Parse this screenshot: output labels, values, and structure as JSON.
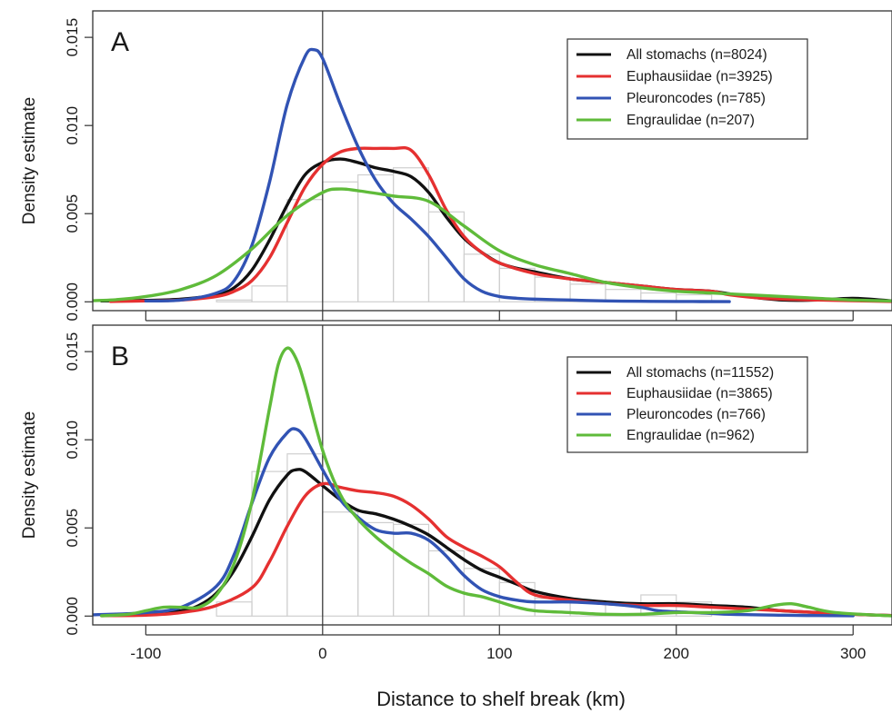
{
  "chart_data": [
    {
      "type": "line",
      "panel_label": "A",
      "ylabel": "Density estimate",
      "xlim": [
        -130,
        322
      ],
      "ylim": [
        -0.0005,
        0.0165
      ],
      "x_ticks": [
        "-100",
        "0",
        "100",
        "200",
        "300"
      ],
      "y_ticks": [
        "0.000",
        "0.005",
        "0.010",
        "0.015"
      ],
      "reference_line_x": 0,
      "legend_position": "top-right",
      "histogram": {
        "bin_edges": [
          -60,
          -40,
          -20,
          0,
          20,
          40,
          60,
          80,
          100,
          120,
          140,
          160,
          180,
          200,
          220
        ],
        "densities": [
          0.0001,
          0.0009,
          0.0058,
          0.0068,
          0.0072,
          0.0076,
          0.0051,
          0.0027,
          0.0019,
          0.0014,
          0.001,
          0.0007,
          0.0005,
          0.0004
        ]
      },
      "series": [
        {
          "name": "All stomachs (n=8024)",
          "color": "#111111",
          "x": [
            -125,
            -100,
            -80,
            -60,
            -50,
            -40,
            -30,
            -20,
            -10,
            0,
            10,
            20,
            30,
            40,
            50,
            60,
            70,
            80,
            90,
            100,
            110,
            120,
            140,
            160,
            180,
            200,
            220,
            240,
            260,
            280,
            300,
            322
          ],
          "y": [
            5e-05,
            8e-05,
            0.00015,
            0.0004,
            0.0008,
            0.0018,
            0.0035,
            0.0055,
            0.0072,
            0.0079,
            0.0081,
            0.0079,
            0.0076,
            0.0074,
            0.0071,
            0.0062,
            0.0048,
            0.0036,
            0.0028,
            0.0022,
            0.0019,
            0.0017,
            0.0013,
            0.0011,
            0.0009,
            0.0007,
            0.0006,
            0.0003,
            0.0001,
            0.0001,
            0.0002,
            5e-05
          ]
        },
        {
          "name": "Euphausiidae (n=3925)",
          "color": "#e53030",
          "x": [
            -120,
            -100,
            -80,
            -60,
            -50,
            -40,
            -30,
            -20,
            -10,
            0,
            10,
            20,
            30,
            40,
            50,
            60,
            70,
            80,
            90,
            100,
            120,
            140,
            160,
            180,
            200,
            220,
            230,
            250,
            280,
            322
          ],
          "y": [
            2e-05,
            5e-05,
            0.0001,
            0.0003,
            0.0006,
            0.0012,
            0.0025,
            0.0045,
            0.0065,
            0.0078,
            0.0085,
            0.0087,
            0.0087,
            0.0087,
            0.0086,
            0.0072,
            0.0052,
            0.0037,
            0.0028,
            0.0022,
            0.0016,
            0.0013,
            0.0011,
            0.0009,
            0.0007,
            0.0006,
            0.0004,
            0.0002,
            0.0001,
            2e-05
          ]
        },
        {
          "name": "Pleuroncodes (n=785)",
          "color": "#3153b4",
          "x": [
            -100,
            -80,
            -60,
            -50,
            -40,
            -30,
            -20,
            -10,
            -5,
            0,
            10,
            20,
            30,
            40,
            50,
            60,
            70,
            80,
            90,
            100,
            110,
            120,
            140,
            160,
            180,
            200,
            230
          ],
          "y": [
            5e-05,
            0.0001,
            0.0005,
            0.0012,
            0.0032,
            0.0068,
            0.0112,
            0.0139,
            0.0143,
            0.0138,
            0.0112,
            0.0088,
            0.0069,
            0.0056,
            0.0047,
            0.0037,
            0.0025,
            0.0013,
            0.0006,
            0.0003,
            0.0002,
            0.00015,
            0.0001,
            5e-05,
            3e-05,
            2e-05,
            1e-05
          ]
        },
        {
          "name": "Engraulidae (n=207)",
          "color": "#5fbb3a",
          "x": [
            -140,
            -120,
            -100,
            -80,
            -60,
            -40,
            -20,
            0,
            10,
            20,
            40,
            60,
            80,
            100,
            120,
            140,
            160,
            180,
            200,
            220,
            240,
            260,
            280,
            300,
            322
          ],
          "y": [
            5e-05,
            0.0001,
            0.0003,
            0.0007,
            0.0015,
            0.003,
            0.0049,
            0.0062,
            0.0064,
            0.0063,
            0.006,
            0.0057,
            0.0043,
            0.0029,
            0.0021,
            0.0016,
            0.0011,
            0.0008,
            0.0006,
            0.0005,
            0.0004,
            0.0003,
            0.0002,
            0.0001,
            5e-05
          ]
        }
      ]
    },
    {
      "type": "line",
      "panel_label": "B",
      "ylabel": "Density estimate",
      "xlabel": "Distance to shelf break (km)",
      "xlim": [
        -130,
        322
      ],
      "ylim": [
        -0.0005,
        0.0165
      ],
      "x_ticks": [
        "-100",
        "0",
        "100",
        "200",
        "300"
      ],
      "y_ticks": [
        "0.000",
        "0.005",
        "0.010",
        "0.015"
      ],
      "reference_line_x": 0,
      "legend_position": "top-right",
      "histogram": {
        "bin_edges": [
          -60,
          -40,
          -20,
          0,
          20,
          40,
          60,
          80,
          100,
          120,
          140,
          160,
          180,
          200,
          220
        ],
        "densities": [
          0.0008,
          0.0082,
          0.0092,
          0.0059,
          0.0053,
          0.0052,
          0.0037,
          0.0027,
          0.0019,
          0.001,
          0.0008,
          0.0007,
          0.0012,
          0.0008
        ]
      },
      "series": [
        {
          "name": "All stomachs (n=11552)",
          "color": "#111111",
          "x": [
            -125,
            -100,
            -80,
            -70,
            -60,
            -50,
            -40,
            -30,
            -20,
            -15,
            -10,
            0,
            10,
            20,
            30,
            40,
            50,
            60,
            70,
            80,
            90,
            100,
            110,
            120,
            140,
            160,
            180,
            200,
            220,
            240,
            260,
            280,
            300,
            322
          ],
          "y": [
            3e-05,
            0.0001,
            0.0003,
            0.0006,
            0.0013,
            0.0026,
            0.0045,
            0.0066,
            0.008,
            0.0083,
            0.0082,
            0.0074,
            0.0066,
            0.006,
            0.0058,
            0.0055,
            0.0051,
            0.0046,
            0.0039,
            0.0032,
            0.0026,
            0.0022,
            0.0018,
            0.0014,
            0.001,
            0.0008,
            0.0007,
            0.0007,
            0.0006,
            0.0005,
            0.0003,
            0.0002,
            0.0001,
            3e-05
          ]
        },
        {
          "name": "Euphausiidae (n=3865)",
          "color": "#e53030",
          "x": [
            -125,
            -100,
            -80,
            -60,
            -40,
            -30,
            -20,
            -10,
            0,
            10,
            20,
            30,
            40,
            50,
            60,
            70,
            80,
            90,
            100,
            110,
            120,
            140,
            160,
            180,
            200,
            220,
            240,
            260,
            280,
            300,
            322
          ],
          "y": [
            2e-05,
            5e-05,
            0.0002,
            0.0006,
            0.0016,
            0.0031,
            0.0051,
            0.0068,
            0.0075,
            0.0073,
            0.0071,
            0.007,
            0.0068,
            0.0063,
            0.0055,
            0.0045,
            0.0039,
            0.0034,
            0.0028,
            0.0019,
            0.0012,
            0.0009,
            0.0007,
            0.0006,
            0.0006,
            0.0005,
            0.0004,
            0.0003,
            0.0002,
            0.0001,
            3e-05
          ]
        },
        {
          "name": "Pleuroncodes (n=766)",
          "color": "#3153b4",
          "x": [
            -140,
            -120,
            -100,
            -80,
            -60,
            -50,
            -40,
            -30,
            -20,
            -15,
            -10,
            0,
            10,
            20,
            30,
            40,
            50,
            60,
            70,
            80,
            90,
            100,
            110,
            120,
            140,
            160,
            180,
            190,
            210,
            230,
            260,
            280,
            300
          ],
          "y": [
            5e-05,
            0.0001,
            0.0002,
            0.0005,
            0.0017,
            0.0035,
            0.0064,
            0.009,
            0.0104,
            0.0106,
            0.0101,
            0.0083,
            0.0066,
            0.0056,
            0.0049,
            0.0047,
            0.0047,
            0.0043,
            0.0034,
            0.0023,
            0.0015,
            0.0011,
            0.0009,
            0.0008,
            0.0008,
            0.0007,
            0.0005,
            0.0003,
            0.0002,
            0.0001,
            5e-05,
            3e-05,
            2e-05
          ]
        },
        {
          "name": "Engraulidae (n=962)",
          "color": "#5fbb3a",
          "x": [
            -125,
            -110,
            -100,
            -90,
            -80,
            -70,
            -60,
            -50,
            -40,
            -30,
            -25,
            -20,
            -15,
            -10,
            0,
            10,
            20,
            30,
            40,
            50,
            60,
            70,
            80,
            90,
            100,
            110,
            120,
            140,
            160,
            180,
            200,
            220,
            240,
            255,
            265,
            275,
            290,
            322
          ],
          "y": [
            2e-05,
            0.0001,
            0.0003,
            0.0005,
            0.0005,
            0.0005,
            0.0012,
            0.003,
            0.0065,
            0.0118,
            0.0143,
            0.0152,
            0.0146,
            0.0131,
            0.0094,
            0.0069,
            0.0055,
            0.0045,
            0.0037,
            0.003,
            0.0024,
            0.0017,
            0.0013,
            0.0011,
            0.0008,
            0.0005,
            0.0003,
            0.0002,
            0.0001,
            0.0001,
            0.0002,
            0.0002,
            0.0003,
            0.0006,
            0.0007,
            0.0005,
            0.0002,
            1e-05
          ]
        }
      ]
    }
  ]
}
